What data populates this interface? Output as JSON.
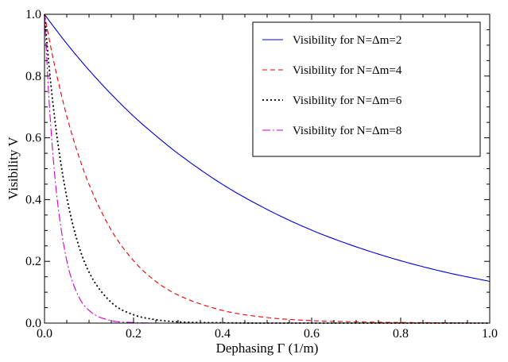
{
  "chart_data": {
    "type": "line",
    "title": "",
    "xlabel": "Dephasing Γ (1/m)",
    "ylabel": "Visibility V",
    "xlim": [
      0.0,
      1.0
    ],
    "ylim": [
      0.0,
      1.0
    ],
    "xticks": [
      "0.0",
      "0.2",
      "0.4",
      "0.6",
      "0.8",
      "1.0"
    ],
    "yticks": [
      "0.0",
      "0.2",
      "0.4",
      "0.6",
      "0.8",
      "1.0"
    ],
    "grid": false,
    "legend_position": "top-right",
    "x": [
      0.0,
      0.01,
      0.02,
      0.03,
      0.05,
      0.075,
      0.1,
      0.15,
      0.2,
      0.25,
      0.3,
      0.4,
      0.5,
      0.6,
      0.7,
      0.8,
      0.9,
      1.0
    ],
    "series": [
      {
        "name": "Visibility for N=Δm=2",
        "color": "#0000dd",
        "style": "solid",
        "values": [
          1.0,
          0.98,
          0.961,
          0.942,
          0.905,
          0.861,
          0.819,
          0.741,
          0.67,
          0.607,
          0.549,
          0.449,
          0.368,
          0.301,
          0.247,
          0.202,
          0.165,
          0.135
        ]
      },
      {
        "name": "Visibility for N=Δm=4",
        "color": "#ee0000",
        "style": "dashed",
        "values": [
          1.0,
          0.923,
          0.852,
          0.787,
          0.67,
          0.549,
          0.449,
          0.301,
          0.202,
          0.135,
          0.091,
          0.041,
          0.018,
          0.008,
          0.004,
          0.002,
          0.001,
          0.0
        ]
      },
      {
        "name": "Visibility for N=Δm=6",
        "color": "#000000",
        "style": "dotted",
        "values": [
          1.0,
          0.835,
          0.698,
          0.583,
          0.407,
          0.259,
          0.165,
          0.067,
          0.027,
          0.011,
          0.004,
          0.001,
          0.0,
          0.0,
          0.0,
          0.0,
          0.0,
          0.0
        ]
      },
      {
        "name": "Visibility for N=Δm=8",
        "color": "#cc00cc",
        "style": "dashdot",
        "values": [
          1.0,
          0.726,
          0.527,
          0.383,
          0.202,
          0.091,
          0.041,
          0.008,
          0.002,
          0.0,
          0.0,
          0.0,
          0.0,
          0.0,
          0.0,
          0.0,
          0.0,
          0.0
        ]
      }
    ]
  }
}
